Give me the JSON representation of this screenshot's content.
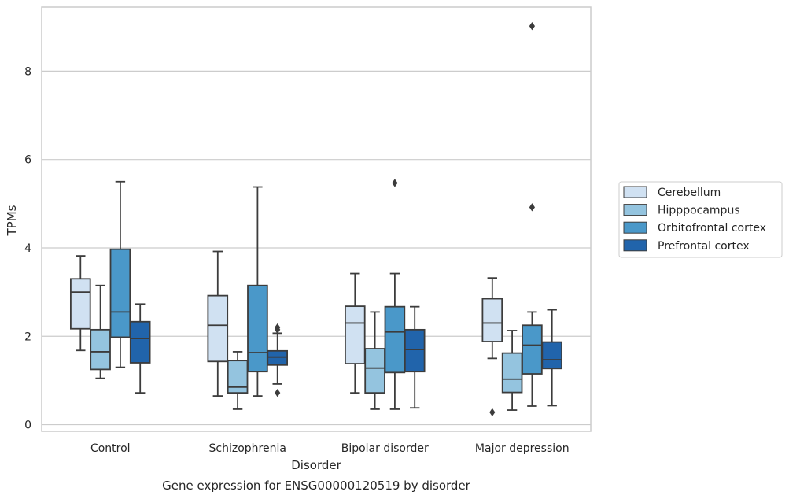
{
  "chart_data": {
    "type": "box",
    "categories": [
      "Control",
      "Schizophrenia",
      "Bipolar disorder",
      "Major depression"
    ],
    "xlabel": "Disorder",
    "ylabel": "TPMs",
    "ylim": [
      -0.15,
      9.45
    ],
    "yticks": [
      0,
      2,
      4,
      6,
      8
    ],
    "grid": "horizontal",
    "legend_position": "right",
    "caption": "Gene expression for ENSG00000120519 by disorder",
    "series": [
      {
        "name": "Cerebellum",
        "color": "#d0e1f2",
        "boxes": [
          {
            "whisker_low": 1.68,
            "q1": 2.17,
            "median": 3.0,
            "q3": 3.3,
            "whisker_high": 3.82,
            "outliers": []
          },
          {
            "whisker_low": 0.65,
            "q1": 1.43,
            "median": 2.25,
            "q3": 2.92,
            "whisker_high": 3.92,
            "outliers": []
          },
          {
            "whisker_low": 0.72,
            "q1": 1.38,
            "median": 2.3,
            "q3": 2.68,
            "whisker_high": 3.42,
            "outliers": []
          },
          {
            "whisker_low": 1.5,
            "q1": 1.88,
            "median": 2.3,
            "q3": 2.85,
            "whisker_high": 3.32,
            "outliers": [
              0.28
            ]
          }
        ]
      },
      {
        "name": "Hipppocampus",
        "color": "#94c4df",
        "boxes": [
          {
            "whisker_low": 1.05,
            "q1": 1.25,
            "median": 1.65,
            "q3": 2.15,
            "whisker_high": 3.15,
            "outliers": []
          },
          {
            "whisker_low": 0.35,
            "q1": 0.72,
            "median": 0.85,
            "q3": 1.45,
            "whisker_high": 1.65,
            "outliers": []
          },
          {
            "whisker_low": 0.35,
            "q1": 0.72,
            "median": 1.28,
            "q3": 1.72,
            "whisker_high": 2.55,
            "outliers": []
          },
          {
            "whisker_low": 0.33,
            "q1": 0.73,
            "median": 1.03,
            "q3": 1.62,
            "whisker_high": 2.13,
            "outliers": []
          }
        ]
      },
      {
        "name": "Orbitofrontal cortex",
        "color": "#4a98c9",
        "boxes": [
          {
            "whisker_low": 1.3,
            "q1": 1.98,
            "median": 2.55,
            "q3": 3.97,
            "whisker_high": 5.5,
            "outliers": []
          },
          {
            "whisker_low": 0.65,
            "q1": 1.2,
            "median": 1.63,
            "q3": 3.15,
            "whisker_high": 5.38,
            "outliers": []
          },
          {
            "whisker_low": 0.35,
            "q1": 1.18,
            "median": 2.1,
            "q3": 2.67,
            "whisker_high": 3.42,
            "outliers": [
              5.47
            ]
          },
          {
            "whisker_low": 0.42,
            "q1": 1.15,
            "median": 1.8,
            "q3": 2.25,
            "whisker_high": 2.55,
            "outliers": [
              4.92,
              9.02
            ]
          }
        ]
      },
      {
        "name": "Prefrontal cortex",
        "color": "#2164ab",
        "boxes": [
          {
            "whisker_low": 0.72,
            "q1": 1.4,
            "median": 1.95,
            "q3": 2.33,
            "whisker_high": 2.73,
            "outliers": []
          },
          {
            "whisker_low": 0.92,
            "q1": 1.35,
            "median": 1.53,
            "q3": 1.67,
            "whisker_high": 2.07,
            "outliers": [
              0.72,
              2.15,
              2.2
            ]
          },
          {
            "whisker_low": 0.38,
            "q1": 1.2,
            "median": 1.7,
            "q3": 2.15,
            "whisker_high": 2.67,
            "outliers": []
          },
          {
            "whisker_low": 0.43,
            "q1": 1.27,
            "median": 1.47,
            "q3": 1.87,
            "whisker_high": 2.6,
            "outliers": []
          }
        ]
      }
    ]
  }
}
